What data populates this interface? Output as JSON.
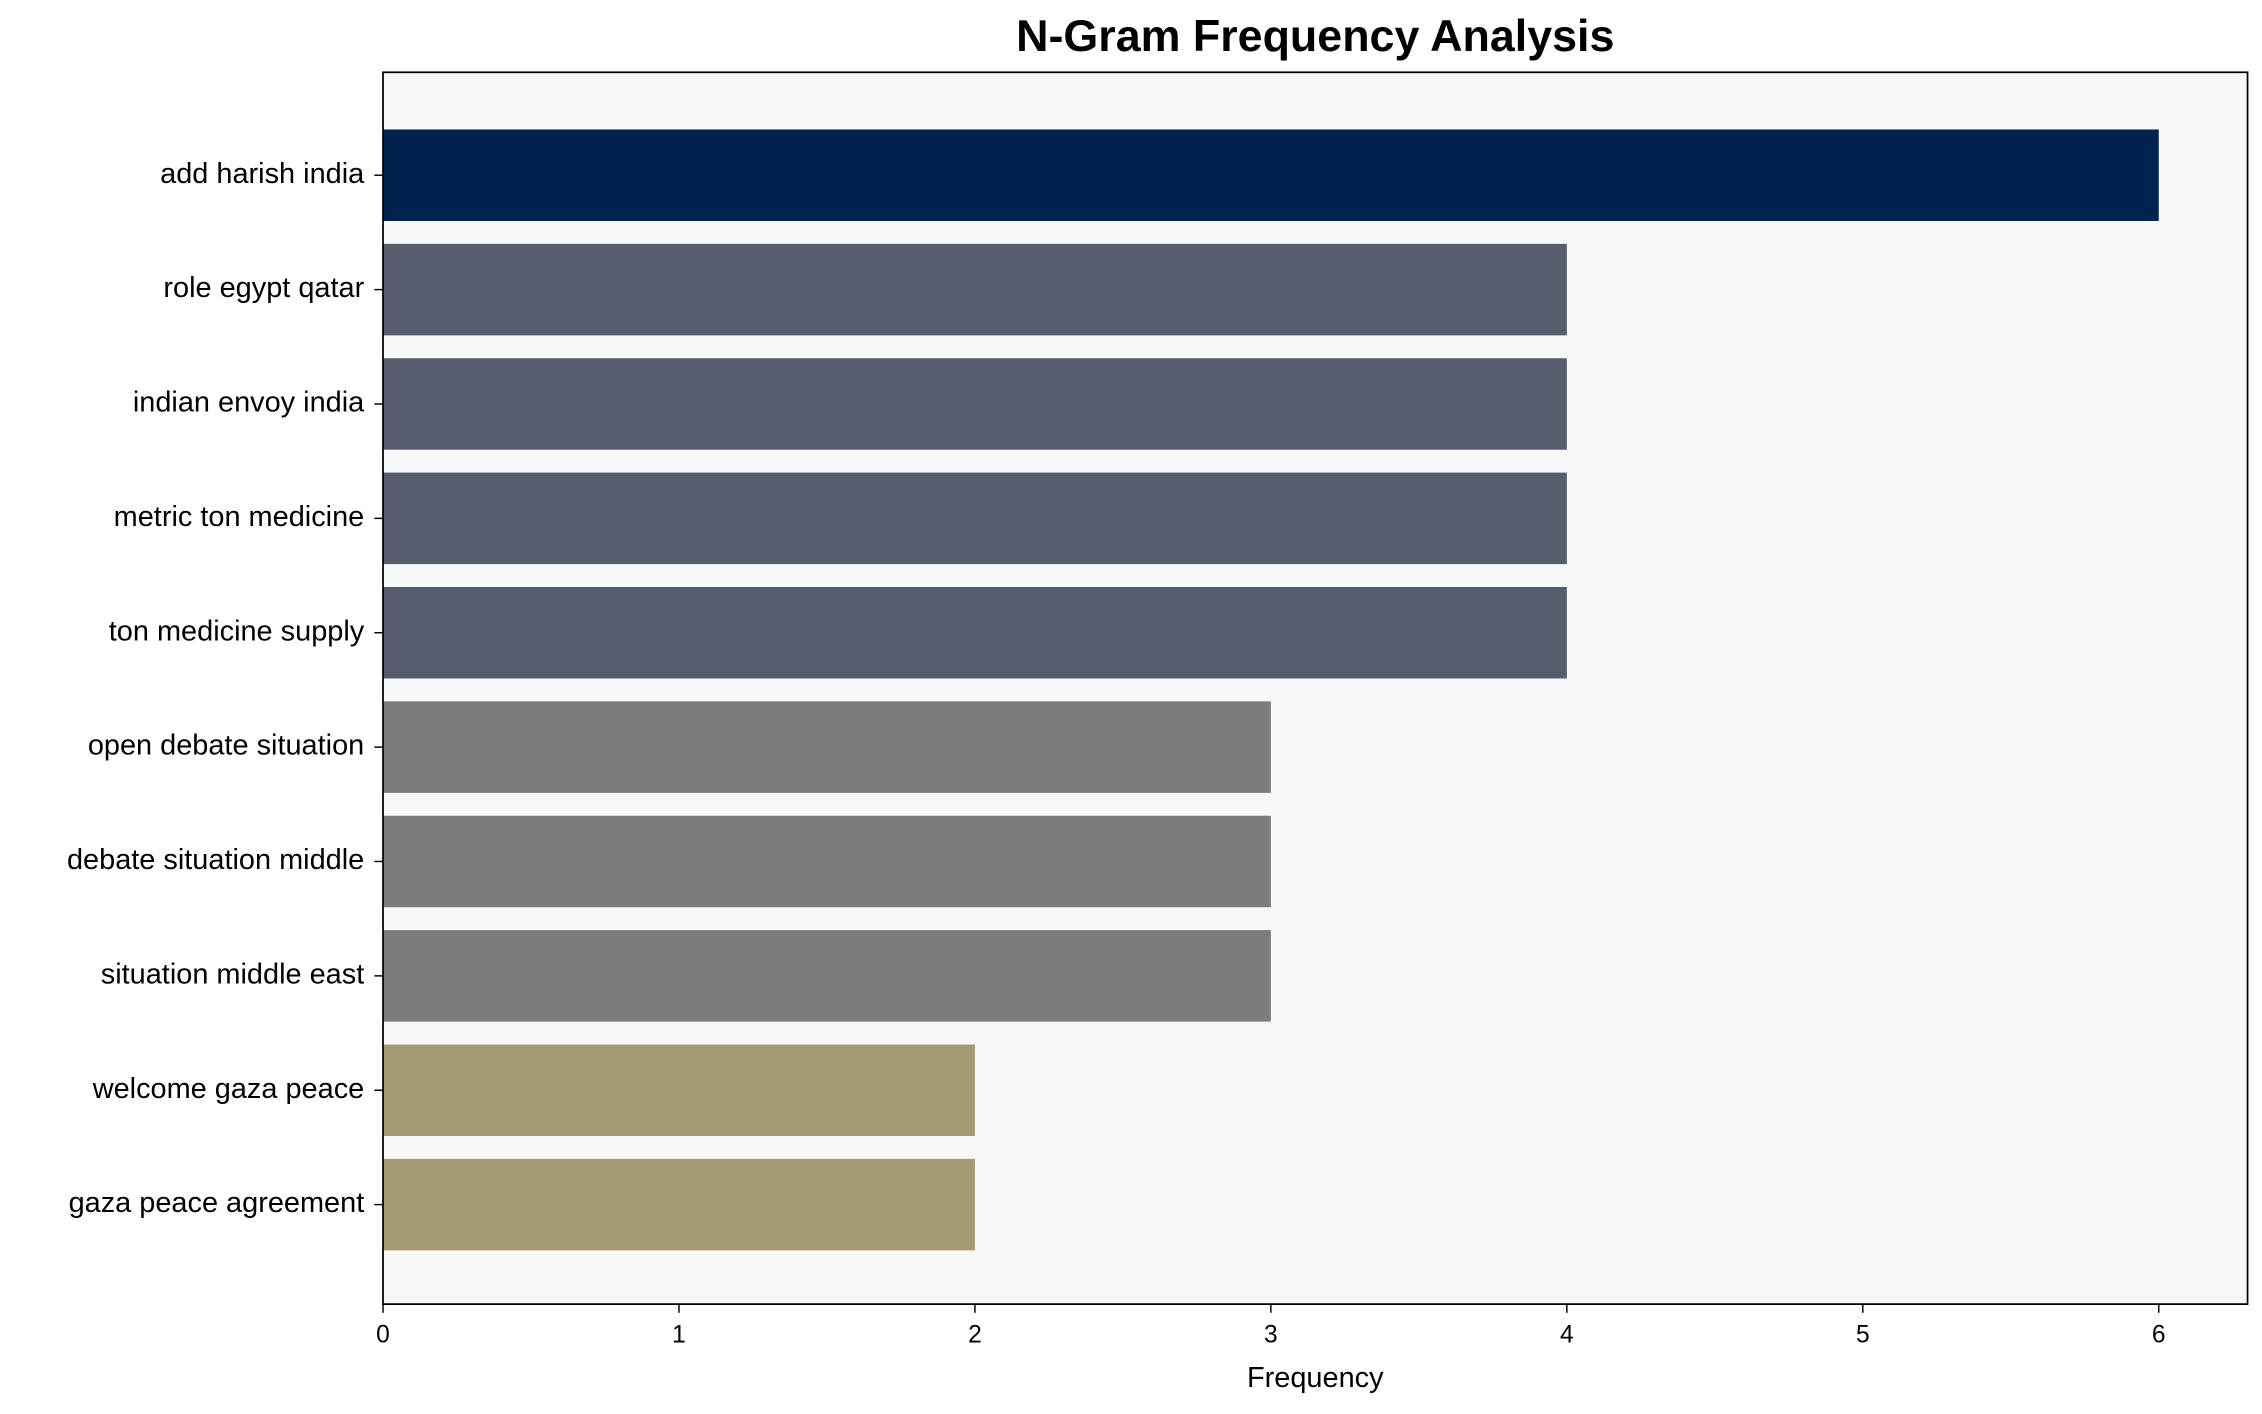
{
  "chart_data": {
    "type": "barh",
    "title": "N-Gram Frequency Analysis",
    "xlabel": "Frequency",
    "categories": [
      "add harish india",
      "role egypt qatar",
      "indian envoy india",
      "metric ton medicine",
      "ton medicine supply",
      "open debate situation",
      "debate situation middle",
      "situation middle east",
      "welcome gaza peace",
      "gaza peace agreement"
    ],
    "values": [
      6,
      4,
      4,
      4,
      4,
      3,
      3,
      3,
      2,
      2
    ],
    "colors": [
      "#00224e",
      "#575d6d",
      "#575d6d",
      "#575d6d",
      "#575d6d",
      "#7d7c78",
      "#7d7c78",
      "#7d7c78",
      "#a59c74",
      "#a59c74"
    ],
    "xlim": [
      0,
      6.3
    ],
    "xticks": [
      0,
      1,
      2,
      3,
      4,
      5,
      6
    ],
    "grid": false
  }
}
